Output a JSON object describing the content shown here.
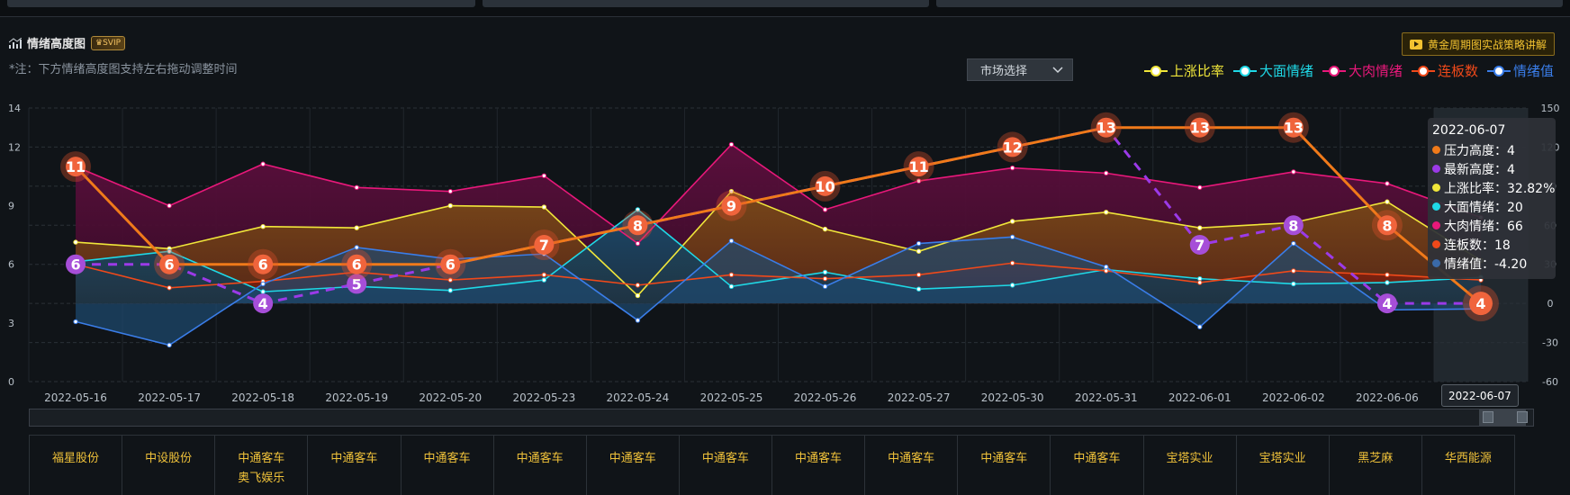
{
  "header": {
    "title": "情绪高度图",
    "badge": "SVIP",
    "note": "*注：下方情绪高度图支持左右拖动调整时间",
    "promo_label": "黄金周期图实战策略讲解",
    "market_select": "市场选择"
  },
  "legend": [
    {
      "label": "上涨比率",
      "color": "#f0e63a"
    },
    {
      "label": "大面情绪",
      "color": "#1fd8e6"
    },
    {
      "label": "大肉情绪",
      "color": "#e8187a"
    },
    {
      "label": "连板数",
      "color": "#f0491a"
    },
    {
      "label": "情绪值",
      "color": "#3a7de8"
    }
  ],
  "tooltip": {
    "date": "2022-06-07",
    "rows": [
      {
        "label": "压力高度：4",
        "color": "#f07a1a"
      },
      {
        "label": "最新高度：4",
        "color": "#9b3ae8"
      },
      {
        "label": "上涨比率：32.82%",
        "color": "#f0e63a"
      },
      {
        "label": "大面情绪：20",
        "color": "#1fd8e6"
      },
      {
        "label": "大肉情绪：66",
        "color": "#e8187a"
      },
      {
        "label": "连板数：18",
        "color": "#f0491a"
      },
      {
        "label": "情绪值：-4.20",
        "color": "#3a6aa8"
      }
    ]
  },
  "active_date_label": "2022-06-07",
  "chart_data": {
    "type": "line",
    "x": [
      "2022-05-16",
      "2022-05-17",
      "2022-05-18",
      "2022-05-19",
      "2022-05-20",
      "2022-05-23",
      "2022-05-24",
      "2022-05-25",
      "2022-05-26",
      "2022-05-27",
      "2022-05-30",
      "2022-05-31",
      "2022-06-01",
      "2022-06-02",
      "2022-06-06",
      "2022-06-07"
    ],
    "y_left": {
      "range": [
        0,
        14
      ],
      "ticks": [
        "0",
        "3",
        "6",
        "9",
        "12",
        "14"
      ]
    },
    "y_right": {
      "range": [
        -60,
        150
      ],
      "ticks": [
        "-60",
        "-30",
        "0",
        "30",
        "60",
        "90",
        "120",
        "150"
      ]
    },
    "series": [
      {
        "name": "压力高度",
        "axis": "left",
        "color": "#f07a1a",
        "values": [
          11,
          6,
          6,
          6,
          6,
          7,
          8,
          9,
          10,
          11,
          12,
          13,
          13,
          13,
          8,
          4
        ]
      },
      {
        "name": "最新高度",
        "axis": "left",
        "color": "#9b3ae8",
        "values": [
          6,
          6,
          4,
          5,
          6,
          7,
          8,
          9,
          10,
          11,
          12,
          13,
          7,
          8,
          4,
          4
        ]
      },
      {
        "name": "上涨比率",
        "axis": "right",
        "color": "#f0e63a",
        "values": [
          47,
          42,
          59,
          58,
          75,
          74,
          6,
          86,
          57,
          40,
          63,
          70,
          58,
          62,
          78,
          33
        ]
      },
      {
        "name": "大面情绪",
        "axis": "right",
        "color": "#1fd8e6",
        "values": [
          32,
          40,
          9,
          13,
          10,
          18,
          72,
          13,
          24,
          11,
          14,
          26,
          19,
          15,
          16,
          20
        ]
      },
      {
        "name": "大肉情绪",
        "axis": "right",
        "color": "#e8187a",
        "values": [
          105,
          75,
          107,
          89,
          86,
          98,
          46,
          122,
          72,
          94,
          104,
          100,
          89,
          101,
          92,
          66
        ]
      },
      {
        "name": "连板数",
        "axis": "right",
        "color": "#f0491a",
        "values": [
          30,
          12,
          17,
          24,
          18,
          22,
          14,
          22,
          19,
          22,
          31,
          25,
          16,
          25,
          22,
          18
        ]
      },
      {
        "name": "情绪值",
        "axis": "right",
        "color": "#3a7de8",
        "values": [
          -14,
          -32,
          15,
          43,
          34,
          38,
          -13,
          48,
          13,
          46,
          51,
          28,
          -18,
          46,
          -5,
          -4.2
        ]
      }
    ],
    "xlabel": "",
    "ylabel": ""
  },
  "stocks": [
    [
      "福星股份"
    ],
    [
      "中设股份"
    ],
    [
      "中通客车",
      "奥飞娱乐"
    ],
    [
      "中通客车"
    ],
    [
      "中通客车"
    ],
    [
      "中通客车"
    ],
    [
      "中通客车"
    ],
    [
      "中通客车"
    ],
    [
      "中通客车"
    ],
    [
      "中通客车"
    ],
    [
      "中通客车"
    ],
    [
      "中通客车"
    ],
    [
      "宝塔实业"
    ],
    [
      "宝塔实业"
    ],
    [
      "黑芝麻"
    ],
    [
      "华西能源"
    ]
  ]
}
